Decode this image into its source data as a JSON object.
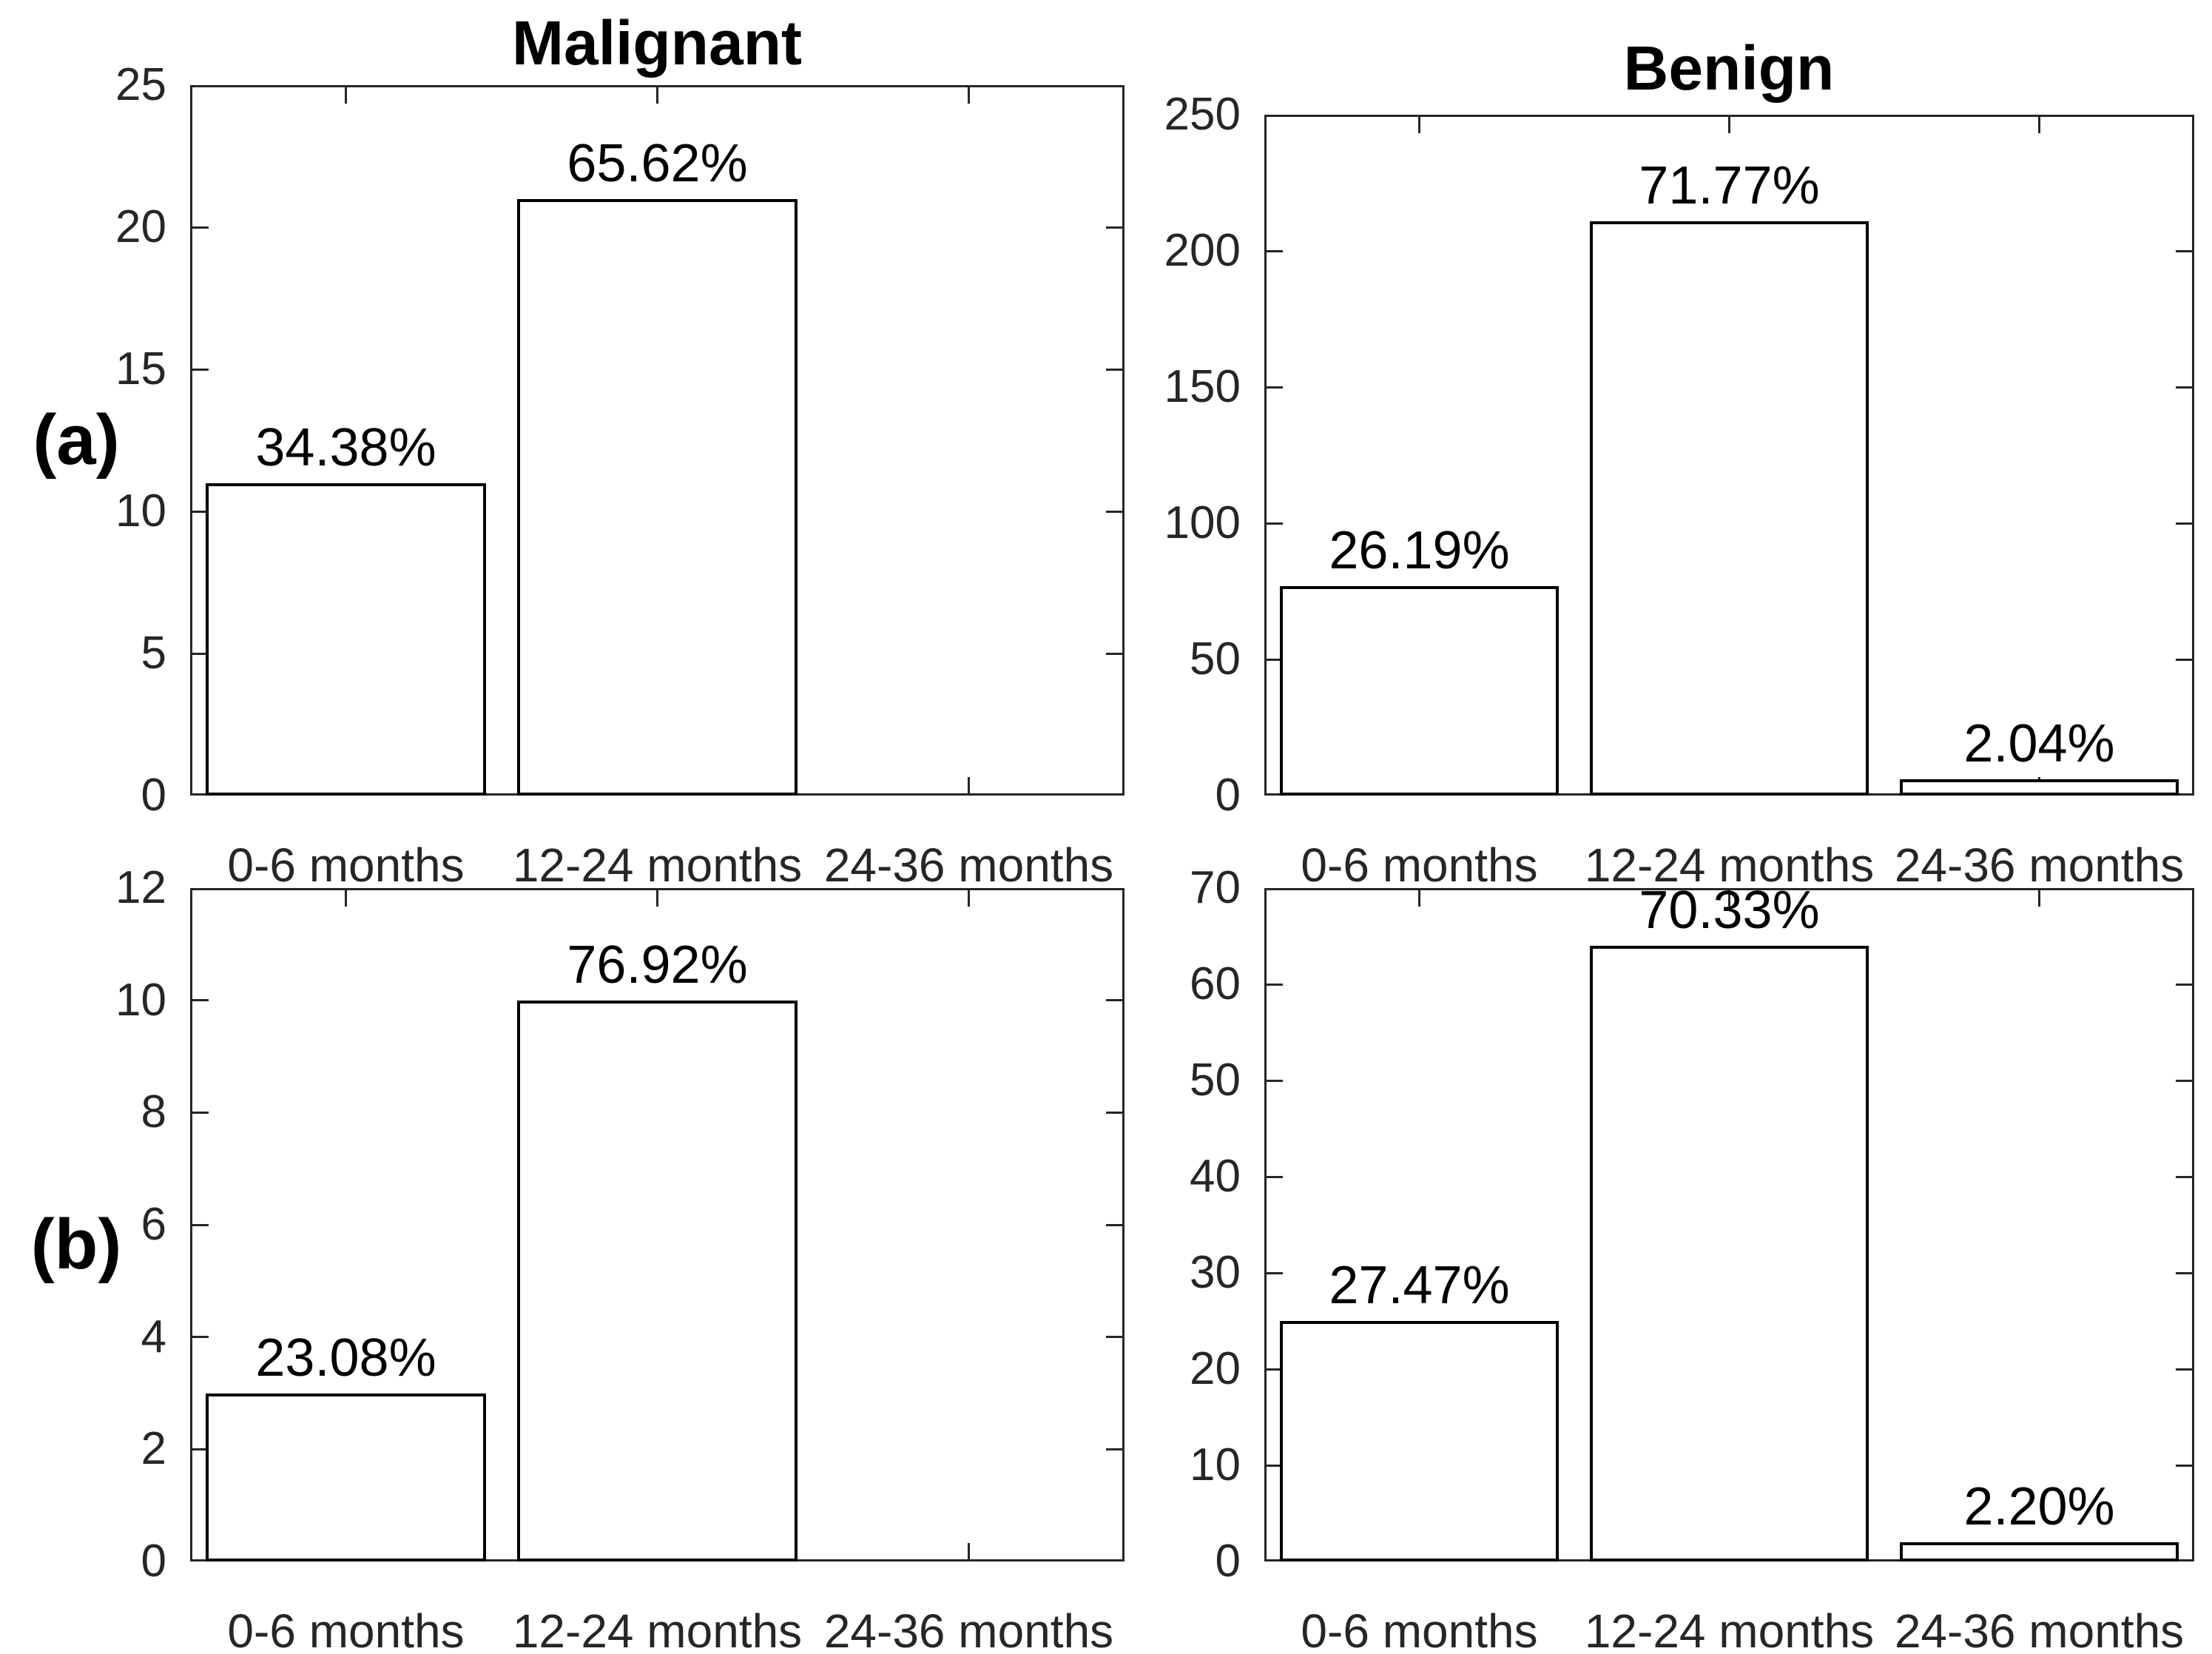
{
  "figure": {
    "row_labels": [
      {
        "label": "(a)"
      },
      {
        "label": "(b)"
      }
    ],
    "column_titles": [
      {
        "label": "Malignant"
      },
      {
        "label": "Benign"
      }
    ],
    "colors": {
      "axis": "#262626",
      "tick_label": "#262626",
      "bar_fill": "#ffffff",
      "bar_edge": "#000000",
      "value_label": "#000000",
      "title": "#000000"
    }
  },
  "chart_data": [
    {
      "type": "bar",
      "panel": "a-malignant",
      "row_label": "(a)",
      "title": "Malignant",
      "categories": [
        "0-6 months",
        "12-24 months",
        "24-36 months"
      ],
      "values": [
        11,
        21,
        0
      ],
      "bar_labels": [
        "34.38%",
        "65.62%",
        ""
      ],
      "ylim": [
        0,
        25
      ],
      "yticks": [
        0,
        5,
        10,
        15,
        20,
        25
      ],
      "grid": false,
      "legend": null
    },
    {
      "type": "bar",
      "panel": "a-benign",
      "row_label": "(a)",
      "title": "Benign",
      "categories": [
        "0-6 months",
        "12-24 months",
        "24-36 months"
      ],
      "values": [
        77,
        211,
        6
      ],
      "bar_labels": [
        "26.19%",
        "71.77%",
        "2.04%"
      ],
      "ylim": [
        0,
        250
      ],
      "yticks": [
        0,
        50,
        100,
        150,
        200,
        250
      ],
      "grid": false,
      "legend": null
    },
    {
      "type": "bar",
      "panel": "b-malignant",
      "row_label": "(b)",
      "title": "",
      "categories": [
        "0-6 months",
        "12-24 months",
        "24-36 months"
      ],
      "values": [
        3,
        10,
        0
      ],
      "bar_labels": [
        "23.08%",
        "76.92%",
        ""
      ],
      "ylim": [
        0,
        12
      ],
      "yticks": [
        0,
        2,
        4,
        6,
        8,
        10,
        12
      ],
      "grid": false,
      "legend": null
    },
    {
      "type": "bar",
      "panel": "b-benign",
      "row_label": "(b)",
      "title": "",
      "categories": [
        "0-6 months",
        "12-24 months",
        "24-36 months"
      ],
      "values": [
        25,
        64,
        2
      ],
      "bar_labels": [
        "27.47%",
        "70.33%",
        "2.20%"
      ],
      "ylim": [
        0,
        70
      ],
      "yticks": [
        0,
        10,
        20,
        30,
        40,
        50,
        60,
        70
      ],
      "grid": false,
      "legend": null
    }
  ]
}
